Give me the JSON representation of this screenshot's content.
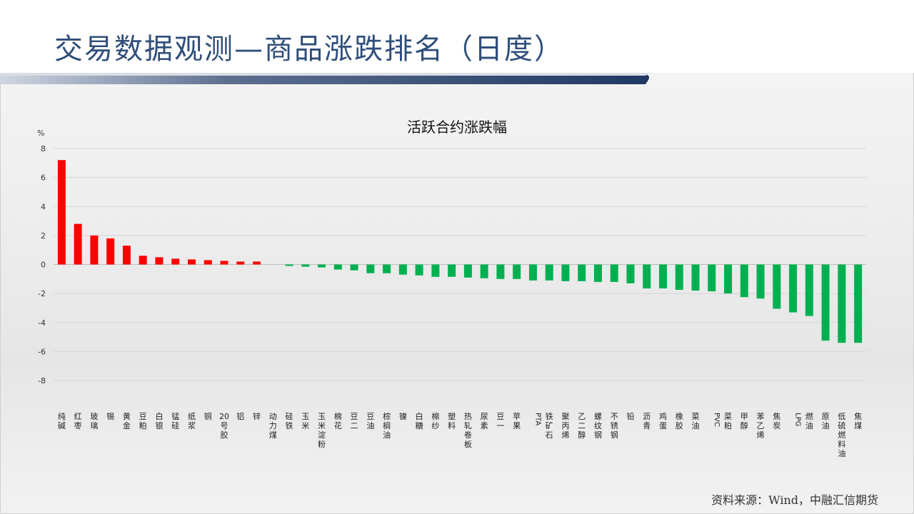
{
  "header": {
    "title": "交易数据观测—商品涨跌排名（日度）"
  },
  "source": "资料来源：Wind，中融汇信期货",
  "colors": {
    "up": "#ff0000",
    "down": "#00b050",
    "title": "#2f4e7a",
    "band": "#1f3864"
  },
  "chart_data": {
    "type": "bar",
    "title": "活跃合约涨跌幅",
    "ylabel": "%",
    "ylim": [
      -8,
      8
    ],
    "yticks": [
      8,
      6,
      4,
      2,
      0,
      -2,
      -4,
      -6,
      -8
    ],
    "grid": true,
    "categories": [
      "纯碱",
      "红枣",
      "玻璃",
      "锡",
      "黄金",
      "豆粕",
      "白银",
      "锰硅",
      "纸浆",
      "铜",
      "20号胶",
      "铝",
      "锌",
      "动力煤",
      "硅铁",
      "玉米",
      "玉米淀粉",
      "棉花",
      "豆二",
      "豆油",
      "棕榈油",
      "镍",
      "白糖",
      "棉纱",
      "塑料",
      "热轧卷板",
      "尿素",
      "豆一",
      "苹果",
      "PTA",
      "铁矿石",
      "聚丙烯",
      "乙二醇",
      "螺纹钢",
      "不锈钢",
      "铅",
      "沥青",
      "鸡蛋",
      "橡胶",
      "菜油",
      "PVC",
      "菜粕",
      "甲醇",
      "苯乙烯",
      "焦炭",
      "LPG",
      "燃油",
      "原油",
      "低硫燃料油",
      "焦煤"
    ],
    "values": [
      7.2,
      2.8,
      2.0,
      1.8,
      1.3,
      0.6,
      0.5,
      0.4,
      0.35,
      0.3,
      0.25,
      0.2,
      0.2,
      0.0,
      -0.1,
      -0.15,
      -0.2,
      -0.35,
      -0.4,
      -0.6,
      -0.6,
      -0.7,
      -0.75,
      -0.85,
      -0.85,
      -0.9,
      -0.95,
      -1.0,
      -1.0,
      -1.1,
      -1.1,
      -1.15,
      -1.15,
      -1.2,
      -1.2,
      -1.3,
      -1.65,
      -1.65,
      -1.75,
      -1.8,
      -1.85,
      -2.0,
      -2.25,
      -2.35,
      -3.05,
      -3.3,
      -3.55,
      -5.25,
      -5.4,
      -5.4
    ]
  }
}
